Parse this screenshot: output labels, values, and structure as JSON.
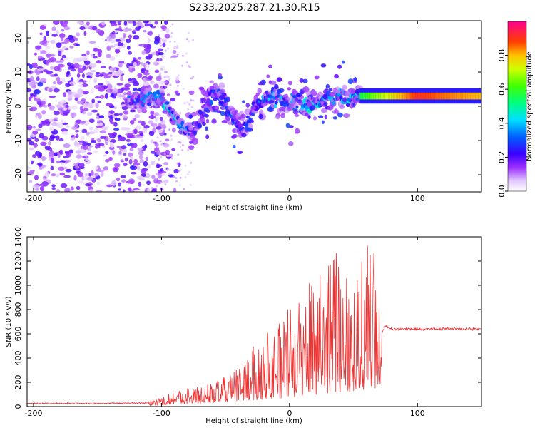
{
  "title": "S233.2025.287.21.30.R15",
  "colors": {
    "signal": "#ee3333",
    "axis": "#000000",
    "background": "#ffffff"
  },
  "chart_data": [
    {
      "type": "heatmap",
      "name": "spectrogram",
      "title": "S233.2025.287.21.30.R15",
      "xlabel": "Height of straight line (km)",
      "ylabel": "Frequency (Hz)",
      "xlim": [
        -205,
        150
      ],
      "ylim": [
        -25,
        25
      ],
      "xticks": [
        -200,
        -100,
        0,
        100
      ],
      "yticks": [
        -20,
        -10,
        0,
        10,
        20
      ],
      "colorbar": {
        "label": "Normalized spectral amplitude",
        "range": [
          0,
          1
        ],
        "ticks": [
          "0.0",
          "0.2",
          "0.4",
          "0.6",
          "0.8"
        ],
        "tick_values": [
          0.0,
          0.2,
          0.4,
          0.6,
          0.8
        ]
      },
      "ridge": {
        "x": [
          -120,
          -100,
          -85,
          -75,
          -65,
          -55,
          -45,
          -35,
          -25,
          -15,
          -5,
          5,
          15,
          25,
          35,
          45,
          55,
          65,
          80,
          100,
          120,
          150
        ],
        "freq": [
          2,
          2,
          -6,
          -8,
          2,
          3,
          -3,
          -6,
          0,
          2,
          2,
          1,
          0,
          2,
          3,
          2,
          3,
          3,
          3,
          3,
          3,
          3
        ],
        "amplitude": [
          0.35,
          0.5,
          0.45,
          0.3,
          0.3,
          0.35,
          0.35,
          0.3,
          0.4,
          0.45,
          0.45,
          0.45,
          0.5,
          0.45,
          0.4,
          0.45,
          0.55,
          0.65,
          0.75,
          0.9,
          0.85,
          0.8
        ]
      }
    },
    {
      "type": "line",
      "name": "snr",
      "xlabel": "Height of straight line (km)",
      "ylabel": "SNR (10 * v/v)",
      "xlim": [
        -205,
        150
      ],
      "ylim": [
        0,
        1400
      ],
      "xticks": [
        -200,
        -100,
        0,
        100
      ],
      "yticks": [
        0,
        200,
        400,
        600,
        800,
        1000,
        1200,
        1400
      ],
      "envelope": {
        "x": [
          -205,
          -150,
          -110,
          -100,
          -90,
          -80,
          -70,
          -60,
          -50,
          -40,
          -30,
          -20,
          -10,
          0,
          10,
          20,
          30,
          40,
          50,
          60,
          65,
          70,
          75,
          80,
          100,
          120,
          150
        ],
        "base": [
          25,
          25,
          30,
          40,
          60,
          70,
          80,
          100,
          120,
          150,
          170,
          190,
          210,
          240,
          280,
          320,
          360,
          380,
          400,
          420,
          440,
          560,
          660,
          640,
          640,
          640,
          640
        ],
        "peak": [
          45,
          45,
          50,
          80,
          140,
          160,
          170,
          200,
          250,
          320,
          470,
          620,
          720,
          830,
          880,
          1280,
          1320,
          1240,
          1180,
          1380,
          1400,
          1000,
          680,
          690,
          680,
          680,
          670
        ]
      }
    }
  ]
}
